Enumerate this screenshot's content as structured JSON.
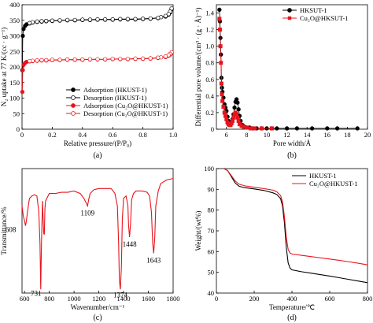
{
  "chart_data": [
    {
      "panel": "a",
      "caption": "(a)",
      "type": "line",
      "xlabel": "Relative pressure/(P/P₀)",
      "ylabel": "N₂ uptake at 77 K/(cc · g⁻¹)",
      "xlim": [
        0,
        1.0
      ],
      "ylim": [
        0,
        400
      ],
      "xticks": [
        0,
        0.2,
        0.4,
        0.6,
        0.8,
        1.0
      ],
      "xtick_labels": [
        "0",
        "0.2",
        "0.4",
        "0.6",
        "0.8",
        "1.0"
      ],
      "yticks": [
        0,
        50,
        100,
        150,
        200,
        250,
        300,
        350,
        400
      ],
      "ytick_labels": [
        "0",
        "50",
        "100",
        "150",
        "200",
        "250",
        "300",
        "350",
        "400"
      ],
      "legend_position": "bottom-right",
      "series": [
        {
          "name": "Adsorption (HKUST-1)",
          "color": "#000000",
          "marker": "filled-circle",
          "x": [
            0.002,
            0.005,
            0.01,
            0.02,
            0.03,
            0.05,
            0.07,
            0.1,
            0.13,
            0.16,
            0.2,
            0.25,
            0.3,
            0.35,
            0.4,
            0.45,
            0.5,
            0.55,
            0.6,
            0.65,
            0.7,
            0.75,
            0.8,
            0.85,
            0.9,
            0.95,
            0.97,
            0.98,
            0.99
          ],
          "y": [
            190,
            300,
            322,
            332,
            337,
            340,
            343,
            345,
            346,
            347,
            348,
            349,
            350,
            350,
            351,
            351,
            352,
            352,
            352,
            353,
            353,
            353,
            354,
            355,
            357,
            362,
            368,
            375,
            385
          ]
        },
        {
          "name": "Desorption (HKUST-1)",
          "color": "#000000",
          "marker": "open-circle",
          "x": [
            0.99,
            0.98,
            0.97,
            0.95,
            0.92,
            0.9,
            0.85,
            0.8,
            0.75,
            0.7,
            0.65,
            0.6,
            0.55,
            0.5,
            0.45,
            0.4,
            0.35,
            0.3,
            0.25,
            0.2,
            0.16,
            0.13,
            0.1,
            0.07,
            0.05
          ],
          "y": [
            388,
            378,
            370,
            364,
            360,
            358,
            356,
            355,
            354,
            354,
            354,
            353,
            353,
            353,
            352,
            352,
            351,
            351,
            350,
            349,
            348,
            347,
            346,
            344,
            341
          ]
        },
        {
          "name": "Adsorption (Cu₂O@HKUST-1)",
          "color": "#e8141c",
          "marker": "filled-circle",
          "x": [
            0.002,
            0.005,
            0.01,
            0.02,
            0.03,
            0.05,
            0.07,
            0.1,
            0.13,
            0.16,
            0.2,
            0.25,
            0.3,
            0.35,
            0.4,
            0.45,
            0.5,
            0.55,
            0.6,
            0.65,
            0.7,
            0.75,
            0.8,
            0.85,
            0.9,
            0.95,
            0.97,
            0.98,
            0.99
          ],
          "y": [
            120,
            190,
            207,
            213,
            216,
            218,
            219,
            220,
            221,
            221,
            222,
            222,
            223,
            223,
            223,
            224,
            224,
            224,
            225,
            225,
            225,
            226,
            226,
            227,
            229,
            232,
            236,
            240,
            245
          ]
        },
        {
          "name": "Desorption (Cu₂O@HKUST-1)",
          "color": "#e8141c",
          "marker": "open-circle",
          "x": [
            0.99,
            0.98,
            0.97,
            0.95,
            0.92,
            0.9,
            0.85,
            0.8,
            0.75,
            0.7,
            0.65,
            0.6,
            0.55,
            0.5,
            0.45,
            0.4,
            0.35,
            0.3,
            0.25,
            0.2,
            0.16,
            0.13,
            0.1,
            0.07,
            0.05
          ],
          "y": [
            247,
            242,
            238,
            234,
            231,
            230,
            228,
            227,
            227,
            226,
            226,
            226,
            225,
            225,
            225,
            224,
            224,
            224,
            223,
            223,
            222,
            222,
            221,
            220,
            219
          ]
        }
      ]
    },
    {
      "panel": "b",
      "caption": "(b)",
      "type": "line",
      "xlabel": "Pore width/Å",
      "ylabel": "Differential pore volume/(cm³ · (g · Å)⁻¹)",
      "xlim": [
        5,
        20
      ],
      "ylim": [
        0,
        1.5
      ],
      "xticks": [
        6,
        8,
        10,
        12,
        14,
        16,
        18,
        20
      ],
      "xtick_labels": [
        "6",
        "8",
        "10",
        "12",
        "14",
        "16",
        "18",
        "20"
      ],
      "yticks": [
        0,
        0.2,
        0.4,
        0.6,
        0.8,
        1.0,
        1.2,
        1.4
      ],
      "ytick_labels": [
        "0",
        "0.2",
        "0.4",
        "0.6",
        "0.8",
        "1.0",
        "1.2",
        "1.4"
      ],
      "legend_position": "top-right",
      "series": [
        {
          "name": "HKSUT-1",
          "color": "#000000",
          "marker": "filled-circle",
          "x": [
            5.3,
            5.35,
            5.4,
            5.45,
            5.5,
            5.55,
            5.6,
            5.7,
            5.8,
            5.9,
            6.0,
            6.1,
            6.2,
            6.3,
            6.4,
            6.5,
            6.6,
            6.7,
            6.8,
            6.9,
            7.0,
            7.1,
            7.2,
            7.3,
            7.4,
            7.6,
            7.8,
            8.0,
            8.3,
            8.6,
            9.0,
            9.5,
            10.0,
            10.5,
            11.0,
            12.0,
            13.0,
            14.5,
            16.0,
            17.0,
            19.0
          ],
          "y": [
            1.44,
            1.3,
            1.1,
            0.9,
            0.62,
            0.5,
            0.45,
            0.38,
            0.3,
            0.26,
            0.22,
            0.15,
            0.1,
            0.07,
            0.06,
            0.08,
            0.12,
            0.18,
            0.26,
            0.33,
            0.36,
            0.32,
            0.24,
            0.16,
            0.1,
            0.05,
            0.03,
            0.02,
            0.02,
            0.01,
            0.01,
            0.01,
            0.01,
            0.01,
            0.01,
            0.01,
            0.01,
            0.01,
            0.01,
            0.01,
            0.01
          ]
        },
        {
          "name": "Cu₂O@HKSUT-1",
          "color": "#e8141c",
          "marker": "filled-square",
          "x": [
            5.3,
            5.35,
            5.4,
            5.45,
            5.5,
            5.55,
            5.6,
            5.7,
            5.8,
            5.9,
            6.0,
            6.1,
            6.2,
            6.3,
            6.4,
            6.5,
            6.6,
            6.7,
            6.8,
            6.9,
            7.0,
            7.1,
            7.2,
            7.3,
            7.5,
            7.7,
            8.0,
            8.4,
            8.8,
            9.5,
            10.5
          ],
          "y": [
            1.33,
            1.2,
            1.0,
            0.8,
            0.55,
            0.42,
            0.34,
            0.27,
            0.2,
            0.16,
            0.12,
            0.08,
            0.06,
            0.05,
            0.05,
            0.07,
            0.1,
            0.14,
            0.18,
            0.2,
            0.18,
            0.14,
            0.1,
            0.06,
            0.04,
            0.03,
            0.02,
            0.01,
            0.01,
            0.01,
            0.01
          ]
        }
      ]
    },
    {
      "panel": "c",
      "caption": "(c)",
      "type": "line",
      "xlabel": "Wavenumber/cm⁻¹",
      "ylabel": "Transmittance/%",
      "xlim": [
        580,
        1800
      ],
      "ylim": [
        0,
        100
      ],
      "xticks": [
        600,
        800,
        1000,
        1200,
        1400,
        1600,
        1800
      ],
      "xtick_labels": [
        "600",
        "800",
        "1000",
        "1200",
        "1400",
        "1600",
        "1800"
      ],
      "annotations": [
        "608",
        "731",
        "1109",
        "1374",
        "1448",
        "1643"
      ],
      "series": [
        {
          "name": "",
          "color": "#e8141c",
          "x": [
            580,
            590,
            600,
            608,
            615,
            625,
            640,
            660,
            680,
            700,
            715,
            725,
            731,
            737,
            745,
            755,
            760,
            765,
            770,
            780,
            800,
            850,
            900,
            950,
            1000,
            1050,
            1080,
            1100,
            1109,
            1118,
            1130,
            1160,
            1200,
            1250,
            1300,
            1330,
            1350,
            1360,
            1366,
            1374,
            1382,
            1390,
            1400,
            1420,
            1435,
            1440,
            1448,
            1456,
            1465,
            1480,
            1500,
            1550,
            1590,
            1610,
            1625,
            1635,
            1643,
            1652,
            1660,
            1680,
            1700,
            1750,
            1800
          ],
          "y": [
            70,
            62,
            58,
            54,
            58,
            66,
            76,
            78,
            79,
            78,
            66,
            40,
            3,
            40,
            74,
            48,
            47,
            68,
            74,
            76,
            80,
            80,
            81,
            81,
            82,
            80,
            76,
            72,
            70,
            75,
            80,
            83,
            84,
            84,
            84,
            80,
            70,
            40,
            10,
            3,
            20,
            60,
            76,
            78,
            70,
            55,
            45,
            55,
            75,
            80,
            82,
            82,
            81,
            78,
            65,
            40,
            32,
            45,
            70,
            82,
            88,
            91,
            92
          ]
        }
      ]
    },
    {
      "panel": "d",
      "caption": "(d)",
      "type": "line",
      "xlabel": "Temperature/℃",
      "ylabel": "Weight/(wt%)",
      "xlim": [
        0,
        800
      ],
      "ylim": [
        40,
        100
      ],
      "xticks": [
        0,
        200,
        400,
        600,
        800
      ],
      "xtick_labels": [
        "0",
        "200",
        "400",
        "600",
        "800"
      ],
      "yticks": [
        40,
        50,
        60,
        70,
        80,
        90,
        100
      ],
      "ytick_labels": [
        "40",
        "50",
        "60",
        "70",
        "80",
        "90",
        "100"
      ],
      "legend_position": "top-right",
      "series": [
        {
          "name": "HKUST-1",
          "color": "#000000",
          "x": [
            40,
            60,
            80,
            100,
            120,
            150,
            200,
            250,
            300,
            320,
            340,
            350,
            360,
            370,
            380,
            390,
            400,
            450,
            500,
            550,
            600,
            650,
            700,
            750,
            800
          ],
          "y": [
            100,
            99,
            96,
            93,
            91.5,
            90.8,
            90.2,
            89.5,
            88.3,
            87.5,
            85.5,
            82,
            74,
            62,
            54.5,
            52,
            51.2,
            50.3,
            49.6,
            48.9,
            48.2,
            47.4,
            46.6,
            45.8,
            45
          ]
        },
        {
          "name": "Cu₂O@HKUST-1",
          "color": "#e8141c",
          "x": [
            40,
            60,
            80,
            100,
            120,
            150,
            200,
            250,
            300,
            320,
            340,
            350,
            360,
            370,
            380,
            390,
            400,
            450,
            500,
            550,
            600,
            650,
            700,
            750,
            800
          ],
          "y": [
            100,
            99,
            96.5,
            94,
            92.5,
            91.7,
            91,
            90.4,
            89.6,
            88.8,
            87,
            84,
            77,
            67,
            61,
            59.3,
            58.8,
            58.2,
            57.6,
            57,
            56.4,
            55.8,
            55.1,
            54.4,
            53.6
          ]
        }
      ]
    }
  ]
}
